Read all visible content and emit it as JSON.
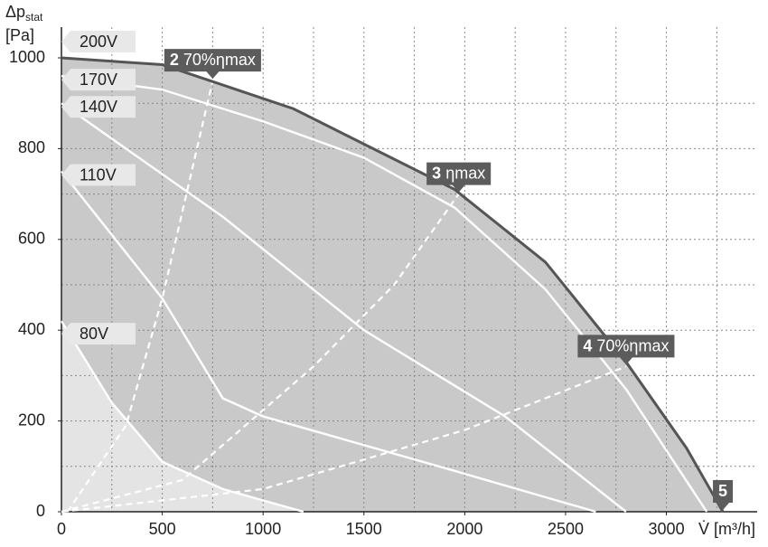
{
  "chart_data": {
    "type": "line",
    "ylabel": "Δp",
    "ylabel_sub": "stat",
    "ylabel_unit": "[Pa]",
    "xlabel": "V̇ [m³/h]",
    "xlim": [
      0,
      3450
    ],
    "ylim": [
      0,
      1000
    ],
    "xticks": [
      0,
      500,
      1000,
      1500,
      2000,
      2500,
      3000
    ],
    "yticks": [
      0,
      200,
      400,
      600,
      800,
      1000
    ],
    "xgrid": [
      250,
      500,
      750,
      1000,
      1250,
      1500,
      1750,
      2000,
      2250,
      2500,
      2750,
      3000,
      3250
    ],
    "ygrid": [
      100,
      200,
      300,
      400,
      500,
      600,
      700,
      800,
      900
    ],
    "fill_color": "#c9c9c9",
    "low_fill_color": "#e4e4e4",
    "series": [
      {
        "name": "200V",
        "color": "#555555",
        "x": [
          0,
          500,
          1150,
          1950,
          2400,
          2800,
          3100,
          3280
        ],
        "values": [
          1000,
          985,
          888,
          710,
          550,
          330,
          140,
          0
        ],
        "end_label": "5"
      },
      {
        "name": "170V",
        "color": "#ffffff",
        "x": [
          0,
          500,
          1000,
          1500,
          1950,
          2400,
          2800,
          3200
        ],
        "values": [
          960,
          930,
          860,
          780,
          670,
          490,
          270,
          0
        ]
      },
      {
        "name": "140V",
        "color": "#ffffff",
        "x": [
          0,
          800,
          1500,
          2200,
          2800
        ],
        "values": [
          900,
          650,
          400,
          210,
          0
        ]
      },
      {
        "name": "110V",
        "color": "#ffffff",
        "x": [
          0,
          500,
          800,
          1000,
          1950,
          2650
        ],
        "values": [
          750,
          470,
          250,
          210,
          90,
          0
        ]
      },
      {
        "name": "80V",
        "color": "#ffffff",
        "x": [
          0,
          250,
          500,
          800,
          1200
        ],
        "values": [
          420,
          240,
          110,
          50,
          0
        ]
      }
    ],
    "efficiency_lines": [
      {
        "number": "2",
        "name": "70%ηmax",
        "x": [
          30,
          320,
          500,
          750
        ],
        "values": [
          0,
          190,
          470,
          950
        ]
      },
      {
        "number": "3",
        "name": "ηmax",
        "x": [
          0,
          600,
          1250,
          1650,
          1970
        ],
        "values": [
          0,
          70,
          320,
          500,
          700
        ]
      },
      {
        "number": "4",
        "name": "70%ηmax",
        "x": [
          0,
          1000,
          2000,
          2800
        ],
        "values": [
          0,
          50,
          180,
          320
        ]
      }
    ]
  }
}
